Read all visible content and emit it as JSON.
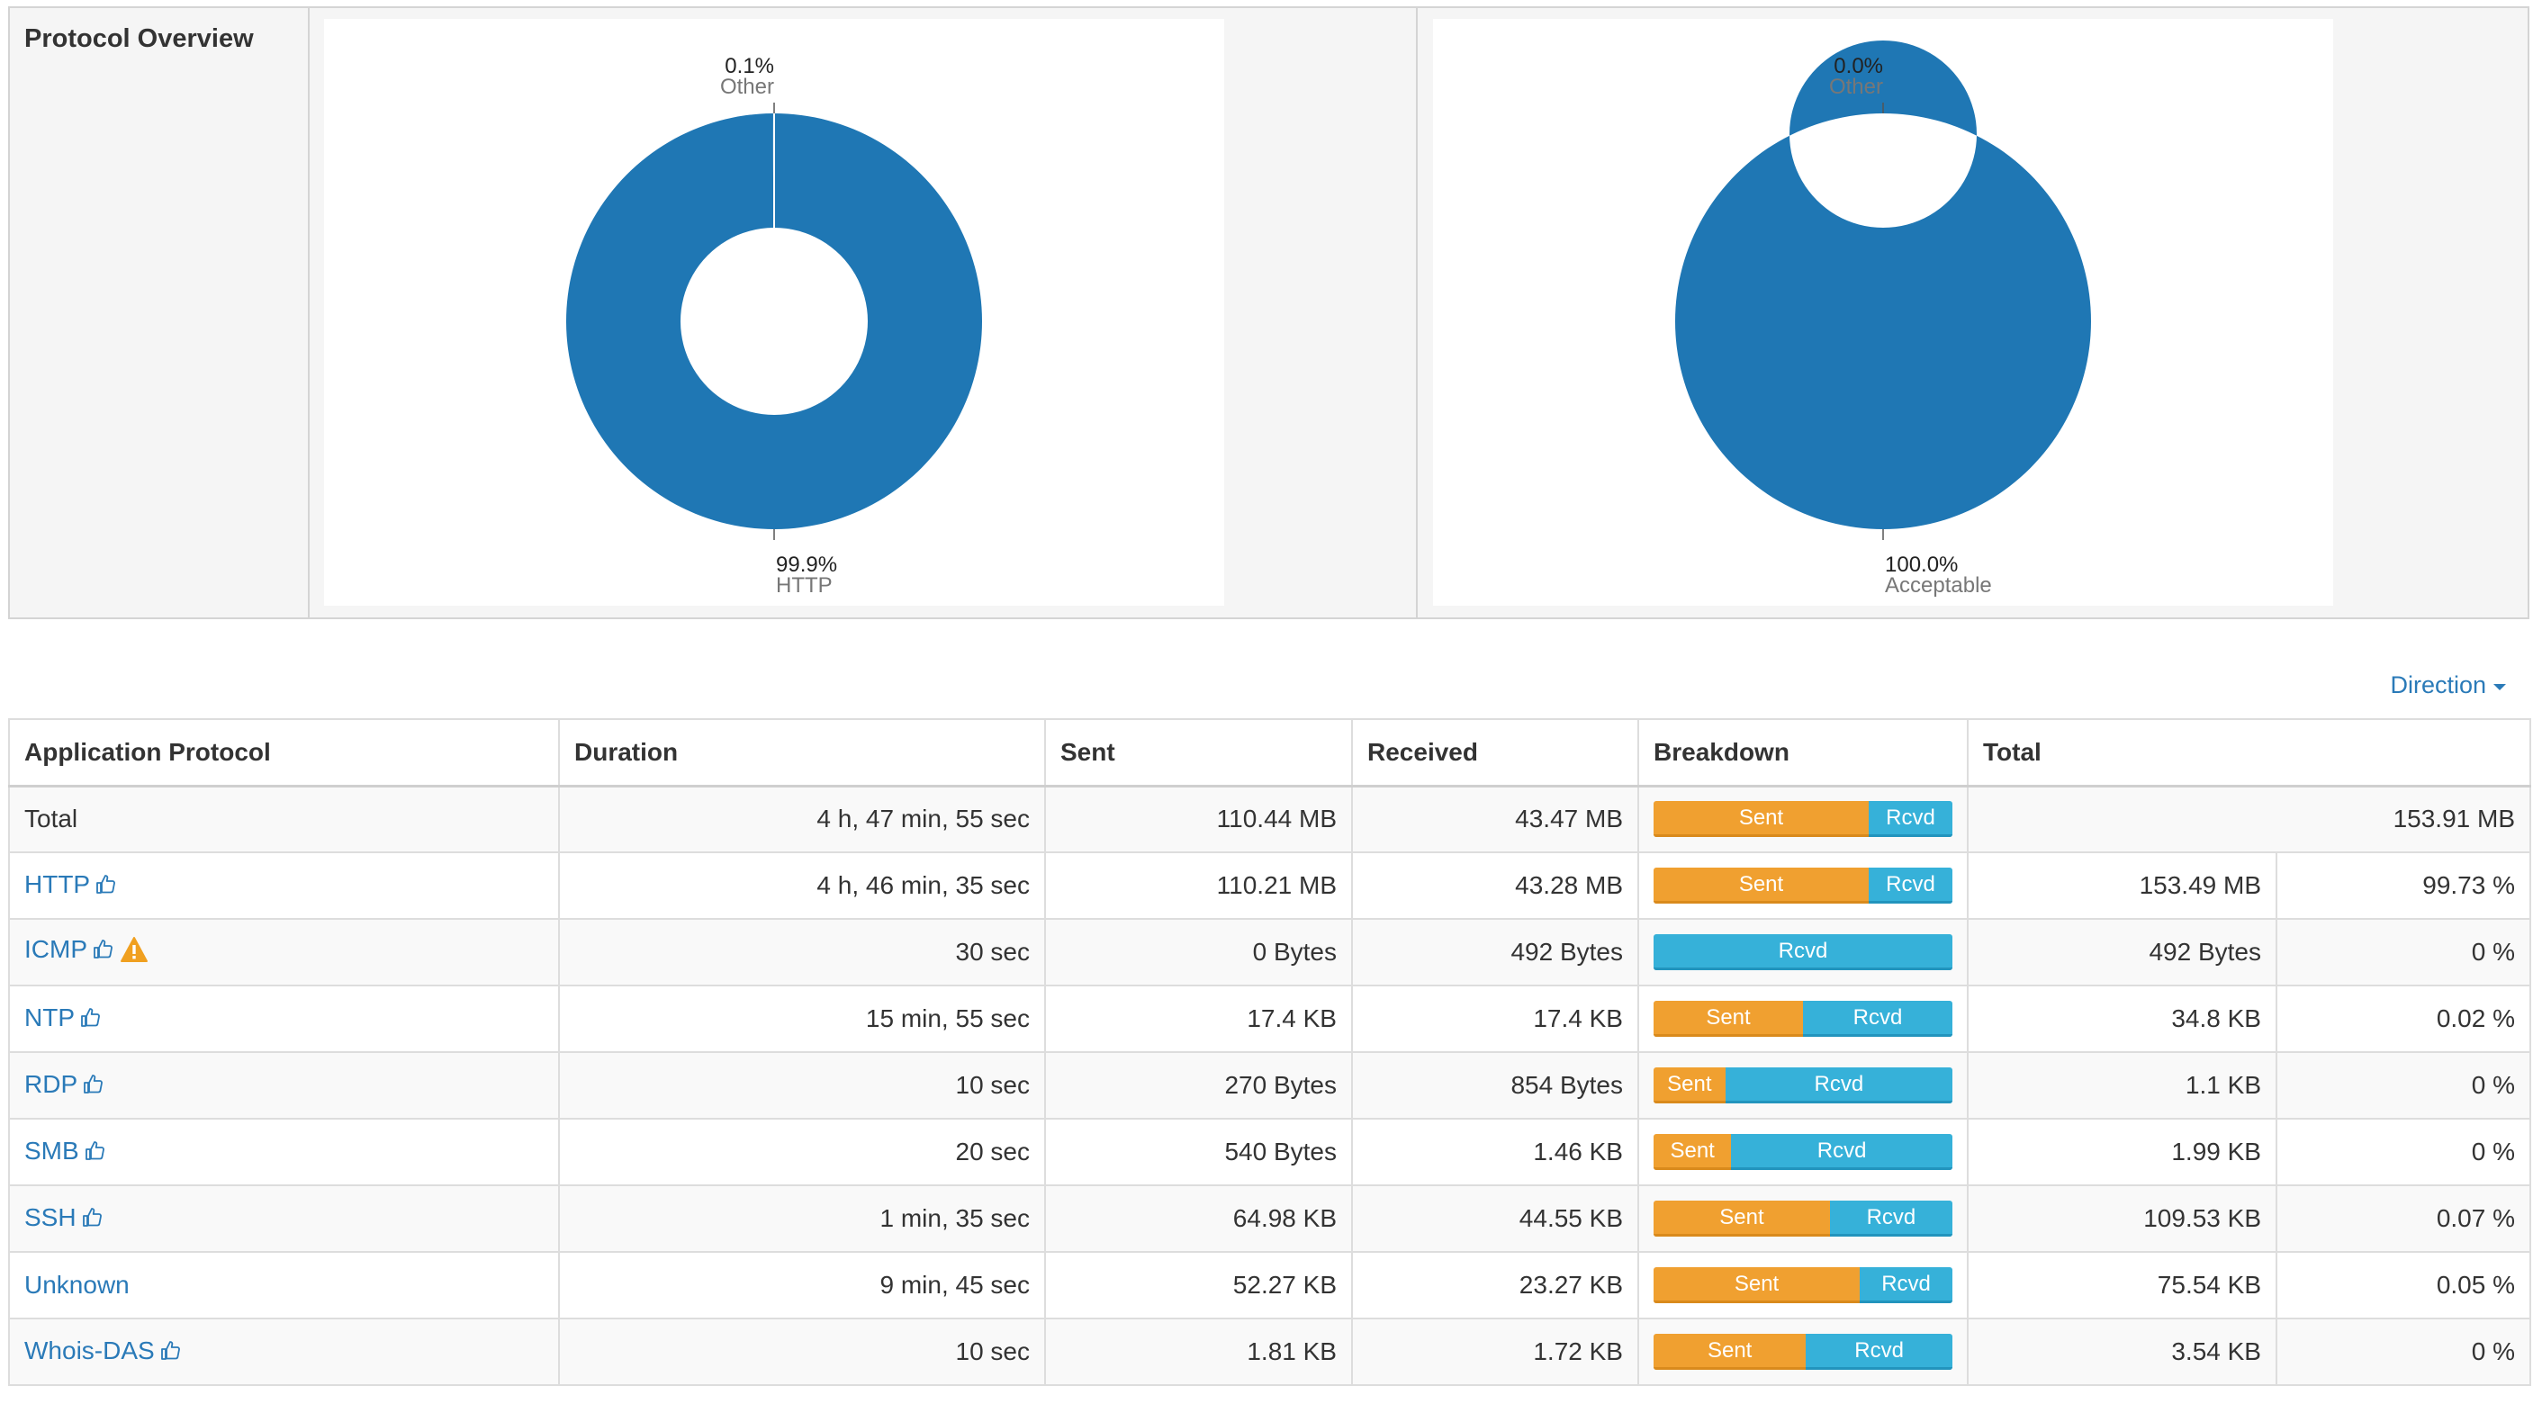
{
  "overview": {
    "title": "Protocol Overview",
    "charts": [
      {
        "chart_data": {
          "type": "pie",
          "slices": [
            {
              "label": "HTTP",
              "value": 99.9,
              "display": "99.9%",
              "color": "#1f77b4"
            },
            {
              "label": "Other",
              "value": 0.1,
              "display": "0.1%",
              "color": "#1f77b4"
            }
          ]
        }
      },
      {
        "chart_data": {
          "type": "pie",
          "slices": [
            {
              "label": "Acceptable",
              "value": 100.0,
              "display": "100.0%",
              "color": "#1f77b4"
            },
            {
              "label": "Other",
              "value": 0.0,
              "display": "0.0%",
              "color": "#1f77b4"
            }
          ]
        }
      }
    ]
  },
  "direction": {
    "label": "Direction"
  },
  "table": {
    "headers": [
      "Application Protocol",
      "Duration",
      "Sent",
      "Received",
      "Breakdown",
      "Total"
    ],
    "sent_label": "Sent",
    "rcvd_label": "Rcvd",
    "colors": {
      "sent": "#f0a030",
      "rcvd": "#36b1d9",
      "link": "#2a7ab8",
      "warning": "#f0a020"
    },
    "total_row": {
      "protocol": "Total",
      "duration": "4 h, 47 min, 55 sec",
      "sent": "110.44 MB",
      "received": "43.47 MB",
      "sent_fraction": 0.72,
      "total": "153.91 MB"
    },
    "rows": [
      {
        "protocol": "HTTP",
        "duration": "4 h, 46 min, 35 sec",
        "sent": "110.21 MB",
        "received": "43.28 MB",
        "sent_fraction": 0.72,
        "total": "153.49 MB",
        "percent": "99.73 %",
        "warning": false
      },
      {
        "protocol": "ICMP",
        "duration": "30 sec",
        "sent": "0 Bytes",
        "received": "492 Bytes",
        "sent_fraction": 0.0,
        "total": "492 Bytes",
        "percent": "0 %",
        "warning": true
      },
      {
        "protocol": "NTP",
        "duration": "15 min, 55 sec",
        "sent": "17.4 KB",
        "received": "17.4 KB",
        "sent_fraction": 0.5,
        "total": "34.8 KB",
        "percent": "0.02 %",
        "warning": false
      },
      {
        "protocol": "RDP",
        "duration": "10 sec",
        "sent": "270 Bytes",
        "received": "854 Bytes",
        "sent_fraction": 0.24,
        "total": "1.1 KB",
        "percent": "0 %",
        "warning": false
      },
      {
        "protocol": "SMB",
        "duration": "20 sec",
        "sent": "540 Bytes",
        "received": "1.46 KB",
        "sent_fraction": 0.26,
        "total": "1.99 KB",
        "percent": "0 %",
        "warning": false
      },
      {
        "protocol": "SSH",
        "duration": "1 min, 35 sec",
        "sent": "64.98 KB",
        "received": "44.55 KB",
        "sent_fraction": 0.59,
        "total": "109.53 KB",
        "percent": "0.07 %",
        "warning": false
      },
      {
        "protocol": "Unknown",
        "duration": "9 min, 45 sec",
        "sent": "52.27 KB",
        "received": "23.27 KB",
        "sent_fraction": 0.69,
        "total": "75.54 KB",
        "percent": "0.05 %",
        "warning": false,
        "no_icon": true
      },
      {
        "protocol": "Whois-DAS",
        "duration": "10 sec",
        "sent": "1.81 KB",
        "received": "1.72 KB",
        "sent_fraction": 0.51,
        "total": "3.54 KB",
        "percent": "0 %",
        "warning": false
      }
    ]
  }
}
